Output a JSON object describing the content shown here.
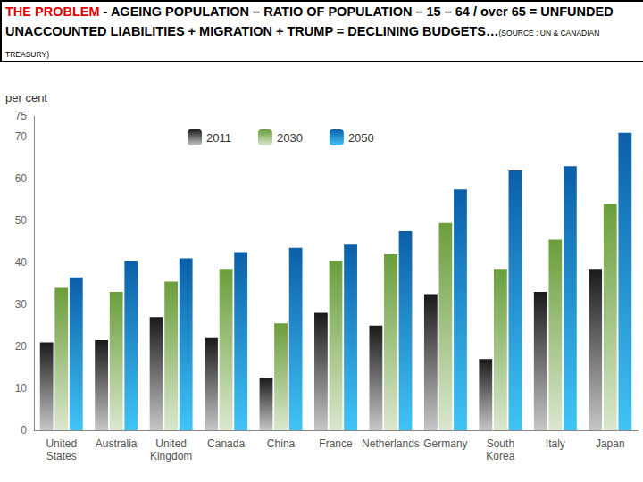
{
  "chart_data": {
    "type": "bar",
    "title": {
      "highlight": "THE PROBLEM",
      "text": " - AGEING POPULATION – RATIO OF POPULATION – 15 – 64 / over 65 = UNFUNDED UNACCOUNTED LIABILITIES + MIGRATION + TRUMP = DECLINING BUDGETS…",
      "source": "(SOURCE : UN & CANADIAN TREASURY)"
    },
    "y_label": "per cent",
    "categories": [
      "United States",
      "Australia",
      "United Kingdom",
      "Canada",
      "China",
      "France",
      "Netherlands",
      "Germany",
      "South Korea",
      "Italy",
      "Japan"
    ],
    "series": [
      {
        "name": "2011",
        "color": "#1a1a1a",
        "values": [
          21,
          21.5,
          27,
          22,
          12.5,
          28,
          25,
          32.5,
          17,
          33,
          38.5
        ]
      },
      {
        "name": "2030",
        "color": "#6a9e3a",
        "values": [
          34,
          33,
          35.5,
          38.5,
          25.5,
          40.5,
          42,
          49.5,
          38.5,
          45.5,
          54
        ]
      },
      {
        "name": "2050",
        "color": "#0b5fa8",
        "values": [
          36.5,
          40.5,
          41,
          42.5,
          43.5,
          44.5,
          47.5,
          57.5,
          62,
          63,
          71
        ]
      }
    ],
    "ylim": [
      0,
      75
    ],
    "yticks": [
      0,
      10,
      20,
      30,
      40,
      50,
      60,
      70
    ],
    "grid": false,
    "legend": "top"
  }
}
